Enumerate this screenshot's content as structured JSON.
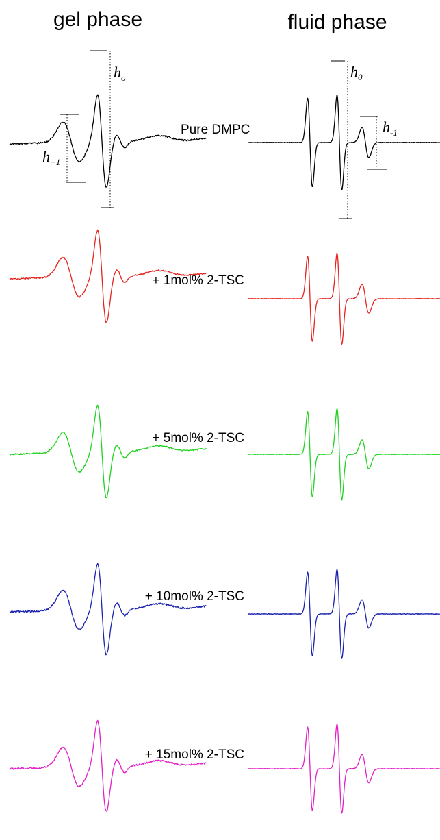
{
  "chart_data": {
    "type": "line",
    "columns": [
      {
        "key": "gel",
        "title": "gel phase"
      },
      {
        "key": "fluid",
        "title": "fluid phase"
      }
    ],
    "series": [
      {
        "name": "Pure DMPC",
        "color": "#000000"
      },
      {
        "name": "+ 1mol% 2-TSC",
        "color": "#e8211c"
      },
      {
        "name": "+ 5mol% 2-TSC",
        "color": "#1fd31f"
      },
      {
        "name": "+ 10mol% 2-TSC",
        "color": "#1a22b0"
      },
      {
        "name": "+ 15mol% 2-TSC",
        "color": "#e21fc8"
      }
    ],
    "annotations": {
      "gel_h0": {
        "main": "h",
        "sub": "o"
      },
      "gel_h_plus1": {
        "main": "h",
        "sub": "+1"
      },
      "fluid_h0": {
        "main": "h",
        "sub": "0"
      },
      "fluid_h_minus1": {
        "main": "h",
        "sub": "-1"
      }
    }
  }
}
